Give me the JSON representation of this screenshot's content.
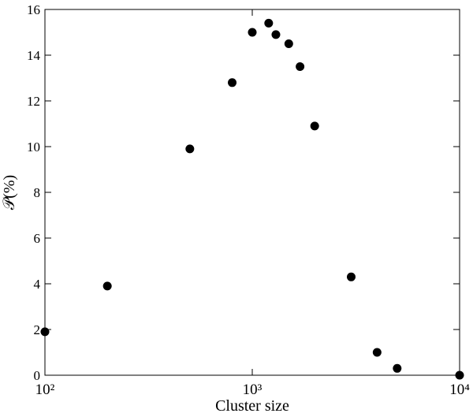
{
  "chart_data": {
    "type": "scatter",
    "xlabel": "Cluster size",
    "ylabel": "𝒫(%)",
    "x": [
      100,
      200,
      500,
      800,
      1000,
      1200,
      1300,
      1500,
      1700,
      2000,
      3000,
      4000,
      5000,
      10000
    ],
    "values": [
      1.9,
      3.9,
      9.9,
      12.8,
      15.0,
      15.4,
      14.9,
      14.5,
      13.5,
      10.9,
      4.3,
      1.0,
      0.3,
      0
    ],
    "color": "#000000",
    "xscale": "log",
    "xlim": [
      100,
      10000
    ],
    "xticks": [
      {
        "value": 100,
        "label": "10²"
      },
      {
        "value": 1000,
        "label": "10³"
      },
      {
        "value": 10000,
        "label": "10⁴"
      }
    ],
    "ylim": [
      0,
      16
    ],
    "yticks": [
      0,
      2,
      4,
      6,
      8,
      10,
      12,
      14,
      16
    ]
  }
}
